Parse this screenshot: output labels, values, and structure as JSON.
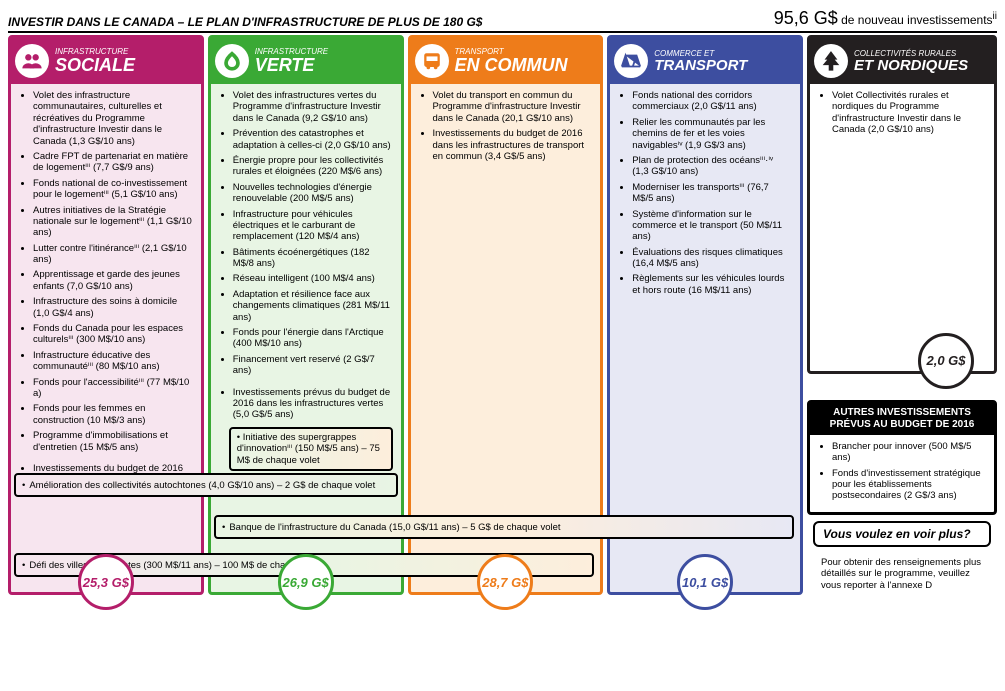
{
  "header": {
    "title_left": "INVESTIR DANS LE CANADA – LE PLAN D'INFRASTRUCTURE DE PLUS DE 180 G$",
    "title_right_amount": "95,6 G$",
    "title_right_text": " de nouveau investissements"
  },
  "columns": {
    "sociale": {
      "supertitle": "INFRASTRUCTURE",
      "title": "SOCIALE",
      "colors": {
        "border": "#b41e6a",
        "header_bg": "#b41e6a",
        "body_bg": "#f7e5ef",
        "icon_fill": "#b41e6a",
        "total_text": "#b41e6a"
      },
      "items": [
        "Volet des infrastructure communautaires, culturelles et récréatives du Programme d'infrastructure Investir dans le Canada (1,3 G$/10 ans)",
        "Cadre FPT de partenariat en matière de logementⁱⁱⁱ (7,7 G$/9 ans)",
        "Fonds national de co-investissement pour le logementⁱⁱⁱ (5,1 G$/10 ans)",
        "Autres initiatives de la Stratégie nationale sur le logementⁱⁱⁱ (1,1 G$/10 ans)",
        "Lutter contre l'itinéranceⁱⁱⁱ (2,1 G$/10 ans)",
        "Apprentissage et garde des jeunes enfants (7,0 G$/10 ans)",
        "Infrastructure des soins à domicile (1,0 G$/4 ans)",
        "Fonds du Canada pour les espaces culturelsⁱⁱⁱ (300 M$/10 ans)",
        "Infrastructure éducative des communautéⁱⁱⁱ (80 M$/10 ans)",
        "Fonds pour l'accessibilitéⁱⁱⁱ (77 M$/10 a)",
        "Fonds pour les femmes en construction (10 M$/3 ans)",
        "Programme d'immobilisations et d'entretien (15 M$/5 ans)"
      ],
      "last_item": "Investissements du budget de 2016 dans les infrastructures sociales (3,4 G$/5 ans)",
      "total": "25,3 G$"
    },
    "verte": {
      "supertitle": "INFRASTRUCTURE",
      "title": "VERTE",
      "colors": {
        "border": "#3aa935",
        "header_bg": "#3aa935",
        "body_bg": "#e8f5e4",
        "icon_fill": "#3aa935",
        "total_text": "#3aa935"
      },
      "items": [
        "Volet des infrastructures vertes du Programme d'infrastructure Investir dans le Canada (9,2 G$/10 ans)",
        "Prévention des catastrophes et adaptation à celles-ci (2,0 G$/10 ans)",
        "Énergie propre pour les collectivités rurales et éloignées (220 M$/6 ans)",
        "Nouvelles technologies d'énergie renouvelable (200 M$/5 ans)",
        "Infrastructure pour véhicules électriques et le carburant de remplacement (120 M$/4 ans)",
        "Bâtiments écoénergétiques (182 M$/8 ans)",
        "Réseau intelligent (100 M$/4 ans)",
        "Adaptation et résilience face aux changements climatiques (281 M$/11 ans)",
        "Fonds pour l'énergie dans l'Arctique (400 M$/10 ans)",
        "Financement vert reservé (2 G$/7 ans)"
      ],
      "last_item": "Investissements prévus du budget de 2016 dans les infrastructures vertes (5,0 G$/5 ans)",
      "boxed_item": "Initiative des supergrappes d'innovationⁱⁱⁱ (150 M$/5 ans) – 75 M$ de chaque volet",
      "total": "26,9 G$"
    },
    "transport": {
      "supertitle": "TRANSPORT",
      "title": "EN COMMUN",
      "colors": {
        "border": "#ee7c1a",
        "header_bg": "#ee7c1a",
        "body_bg": "#fdeedc",
        "icon_fill": "#ee7c1a",
        "total_text": "#ee7c1a"
      },
      "items": [
        "Volet du transport en commun du Programme d'infrastructure Investir dans le Canada (20,1 G$/10 ans)",
        "Investissements du budget de 2016 dans les infrastructures de transport en commun (3,4 G$/5 ans)"
      ],
      "total": "28,7 G$"
    },
    "commerce": {
      "supertitle": "COMMERCE ET",
      "title": "TRANSPORT",
      "colors": {
        "border": "#3d4ea0",
        "header_bg": "#3d4ea0",
        "body_bg": "#e7e8f4",
        "icon_fill": "#3d4ea0",
        "total_text": "#3d4ea0"
      },
      "items": [
        "Fonds national des corridors commerciaux (2,0 G$/11 ans)",
        "Relier les communautés par les chemins de fer et les voies navigablesⁱᵛ (1,9 G$/3 ans)",
        "Plan de protection des océansⁱⁱⁱ·ⁱᵛ (1,3 G$/10 ans)",
        "Moderniser les transportsⁱⁱⁱ (76,7 M$/5 ans)",
        "Système d'information sur le commerce et le transport (50 M$/11 ans)",
        "Évaluations des risques climatiques (16,4 M$/5 ans)",
        "Règlements sur les véhicules lourds et hors route (16 M$/11 ans)"
      ],
      "total": "10,1 G$"
    },
    "nordiques": {
      "supertitle": "COLLECTIVITÉS RURALES",
      "title": "ET NORDIQUES",
      "colors": {
        "border": "#231f20",
        "header_bg": "#231f20",
        "body_bg": "#ffffff",
        "icon_fill": "#231f20",
        "total_text": "#231f20"
      },
      "items": [
        "Volet Collectivités rurales et nordiques du Programme d'infrastructure Investir dans le Canada (2,0 G$/10 ans)"
      ],
      "total": "2,0 G$"
    }
  },
  "cross_bars": {
    "autochtones": {
      "text": "Amélioration des collectivités autochtones (4,0 G$/10 ans) – 2 G$ de chaque volet",
      "gradient_from": "#f7e5ef",
      "gradient_to": "#e8f5e4"
    },
    "banque": {
      "text": "Banque de l'infrastructure du Canada (15,0 G$/11 ans) – 5 G$ de chaque volet",
      "gradient_from": "#e8f5e4",
      "gradient_mid": "#fdeedc",
      "gradient_to": "#e7e8f4"
    },
    "villes": {
      "text": "Défi des villes intelligentes (300 M$/11 ans) – 100 M$ de chaque volet",
      "gradient_from": "#f7e5ef",
      "gradient_mid": "#e8f5e4",
      "gradient_to": "#fdeedc"
    }
  },
  "other_box": {
    "header": "AUTRES INVESTISSEMENTS PRÉVUS AU BUDGET DE 2016",
    "items": [
      "Brancher pour innover (500 M$/5 ans)",
      "Fonds d'investissement stratégique pour les établissements postsecondaires (2 G$/3 ans)"
    ]
  },
  "more": {
    "title": "Vous voulez en voir plus?",
    "body": "Pour obtenir des renseignements plus détaillés sur le programme, veuillez vous reporter à l'annexe D"
  },
  "icons": {
    "sociale_svg": "people",
    "verte_svg": "leaf",
    "transport_svg": "bus",
    "commerce_svg": "bridge",
    "nordiques_svg": "tree"
  }
}
